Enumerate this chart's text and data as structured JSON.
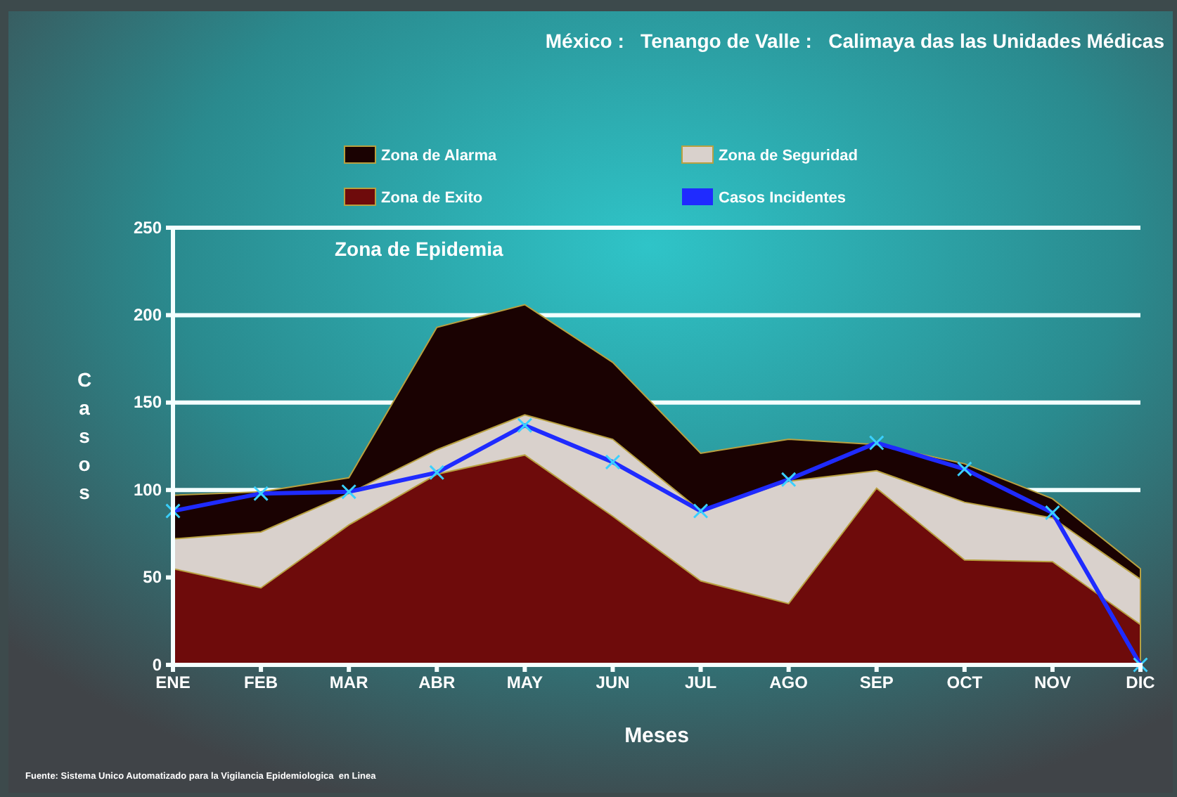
{
  "chart_data": {
    "type": "area",
    "title": "México :   Tenango de Valle :   Calimaya das las Unidades Médicas",
    "xlabel": "Meses",
    "ylabel": "Casos",
    "categories": [
      "ENE",
      "FEB",
      "MAR",
      "ABR",
      "MAY",
      "JUN",
      "JUL",
      "AGO",
      "SEP",
      "OCT",
      "NOV",
      "DIC"
    ],
    "series": [
      {
        "name": "Zona de Alarma",
        "color": "#1a0202",
        "values": [
          97,
          99,
          107,
          193,
          206,
          173,
          121,
          129,
          126,
          115,
          95,
          55
        ]
      },
      {
        "name": "Zona de Seguridad",
        "color": "#d9d1cc",
        "values": [
          72,
          76,
          98,
          123,
          143,
          129,
          88,
          105,
          111,
          93,
          84,
          49
        ]
      },
      {
        "name": "Zona de Exito",
        "color": "#6e0b0b",
        "values": [
          55,
          44,
          80,
          109,
          120,
          85,
          48,
          35,
          101,
          60,
          59,
          23
        ]
      },
      {
        "name": "Casos Incidentes",
        "type": "line",
        "marker": "cross",
        "color": "#1f2bff",
        "values": [
          88,
          98,
          99,
          110,
          137,
          116,
          88,
          106,
          127,
          112,
          87,
          0
        ]
      }
    ],
    "ylim": [
      0,
      250
    ],
    "yticks": [
      0,
      50,
      100,
      150,
      200,
      250
    ],
    "grid": "y",
    "legend": "top",
    "annotations": [
      "Zona de Epidemia",
      "Fuente: Sistema Unico Automatizado para la Vigilancia Epidemiologica  en Linea"
    ]
  }
}
